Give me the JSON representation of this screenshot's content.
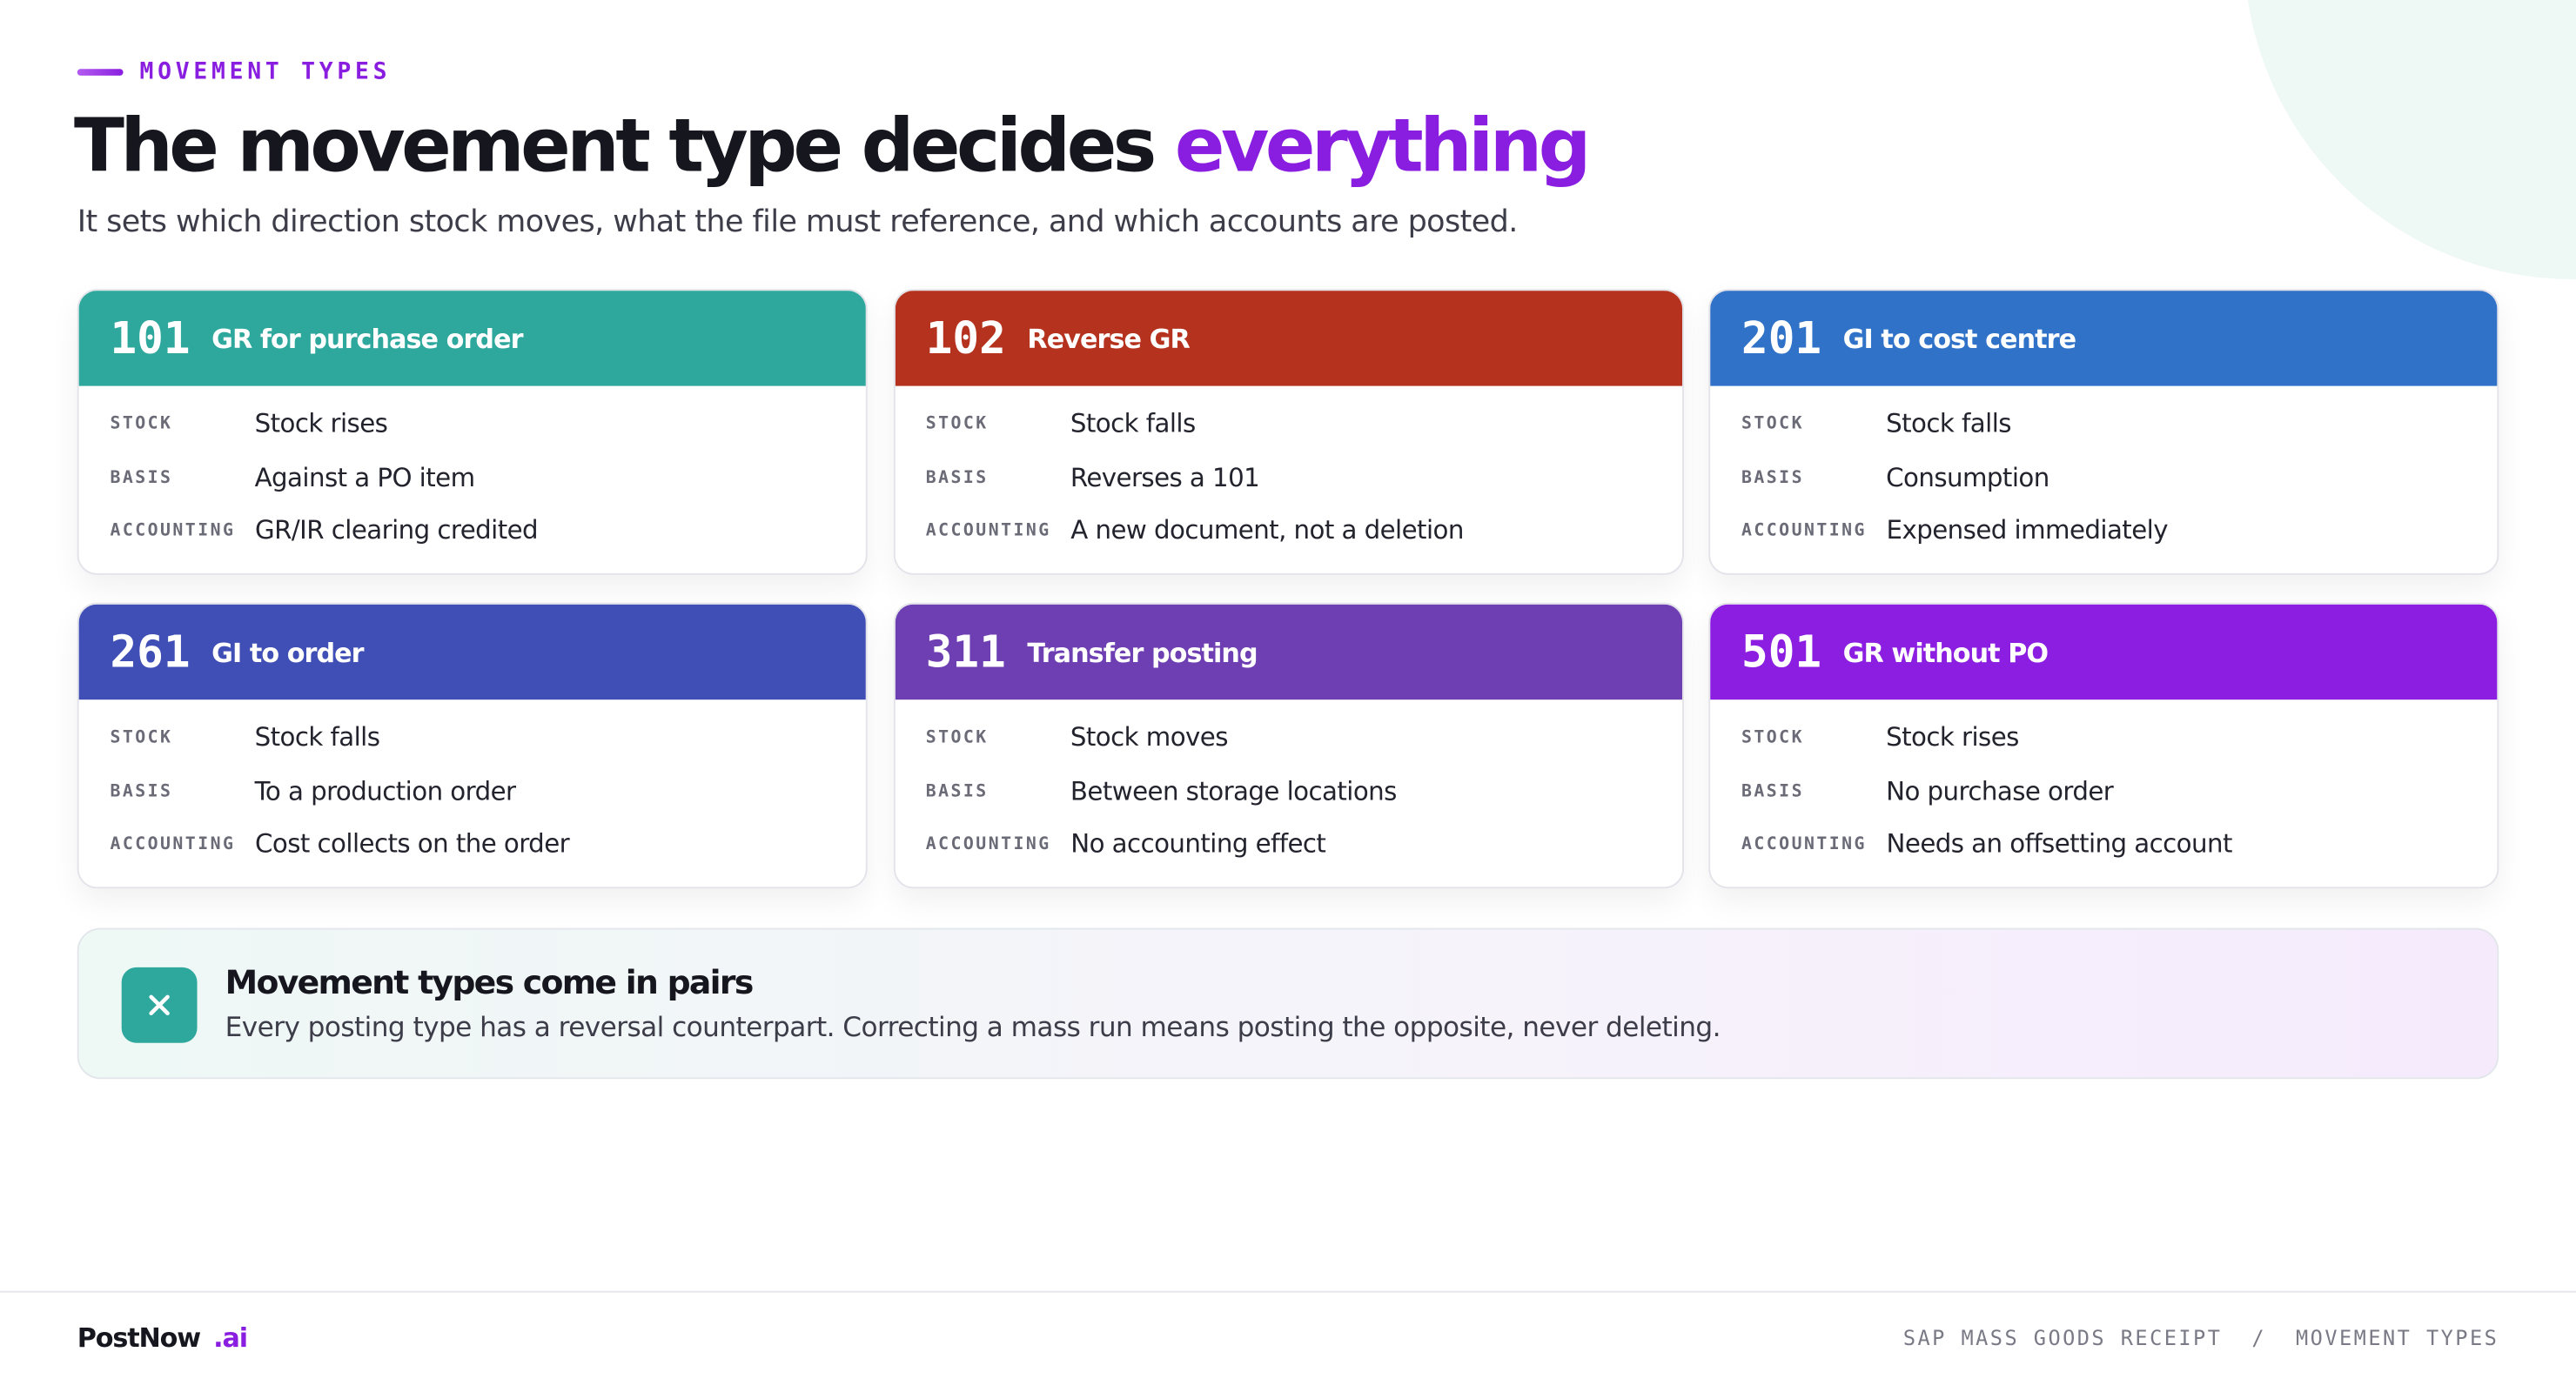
{
  "header": {
    "eyebrow": "MOVEMENT TYPES",
    "title_main": "The movement type decides",
    "title_highlight": "everything",
    "subtitle": "It sets which direction stock moves, what the file must reference, and which accounts are posted."
  },
  "cards": [
    {
      "code": "101",
      "name": "GR for purchase order",
      "rows": [
        {
          "label": "STOCK",
          "value": "Stock rises"
        },
        {
          "label": "BASIS",
          "value": "Against a PO item"
        },
        {
          "label": "ACCOUNTING",
          "value": "GR/IR clearing credited"
        }
      ]
    },
    {
      "code": "102",
      "name": "Reverse GR",
      "rows": [
        {
          "label": "STOCK",
          "value": "Stock falls"
        },
        {
          "label": "BASIS",
          "value": "Reverses a 101"
        },
        {
          "label": "ACCOUNTING",
          "value": "A new document, not a deletion"
        }
      ]
    },
    {
      "code": "201",
      "name": "GI to cost centre",
      "rows": [
        {
          "label": "STOCK",
          "value": "Stock falls"
        },
        {
          "label": "BASIS",
          "value": "Consumption"
        },
        {
          "label": "ACCOUNTING",
          "value": "Expensed immediately"
        }
      ]
    },
    {
      "code": "261",
      "name": "GI to order",
      "rows": [
        {
          "label": "STOCK",
          "value": "Stock falls"
        },
        {
          "label": "BASIS",
          "value": "To a production order"
        },
        {
          "label": "ACCOUNTING",
          "value": "Cost collects on the order"
        }
      ]
    },
    {
      "code": "311",
      "name": "Transfer posting",
      "rows": [
        {
          "label": "STOCK",
          "value": "Stock moves"
        },
        {
          "label": "BASIS",
          "value": "Between storage locations"
        },
        {
          "label": "ACCOUNTING",
          "value": "No accounting effect"
        }
      ]
    },
    {
      "code": "501",
      "name": "GR without PO",
      "rows": [
        {
          "label": "STOCK",
          "value": "Stock rises"
        },
        {
          "label": "BASIS",
          "value": "No purchase order"
        },
        {
          "label": "ACCOUNTING",
          "value": "Needs an offsetting account"
        }
      ]
    }
  ],
  "callout": {
    "title": "Movement types come in pairs",
    "text": "Every posting type has a reversal counterpart. Correcting a mass run means posting the opposite, never deleting."
  },
  "footer": {
    "brand": "PostNow",
    "brand_suffix": ".ai",
    "crumb_1": "SAP MASS GOODS RECEIPT",
    "separator": "/",
    "crumb_2": "MOVEMENT TYPES"
  }
}
